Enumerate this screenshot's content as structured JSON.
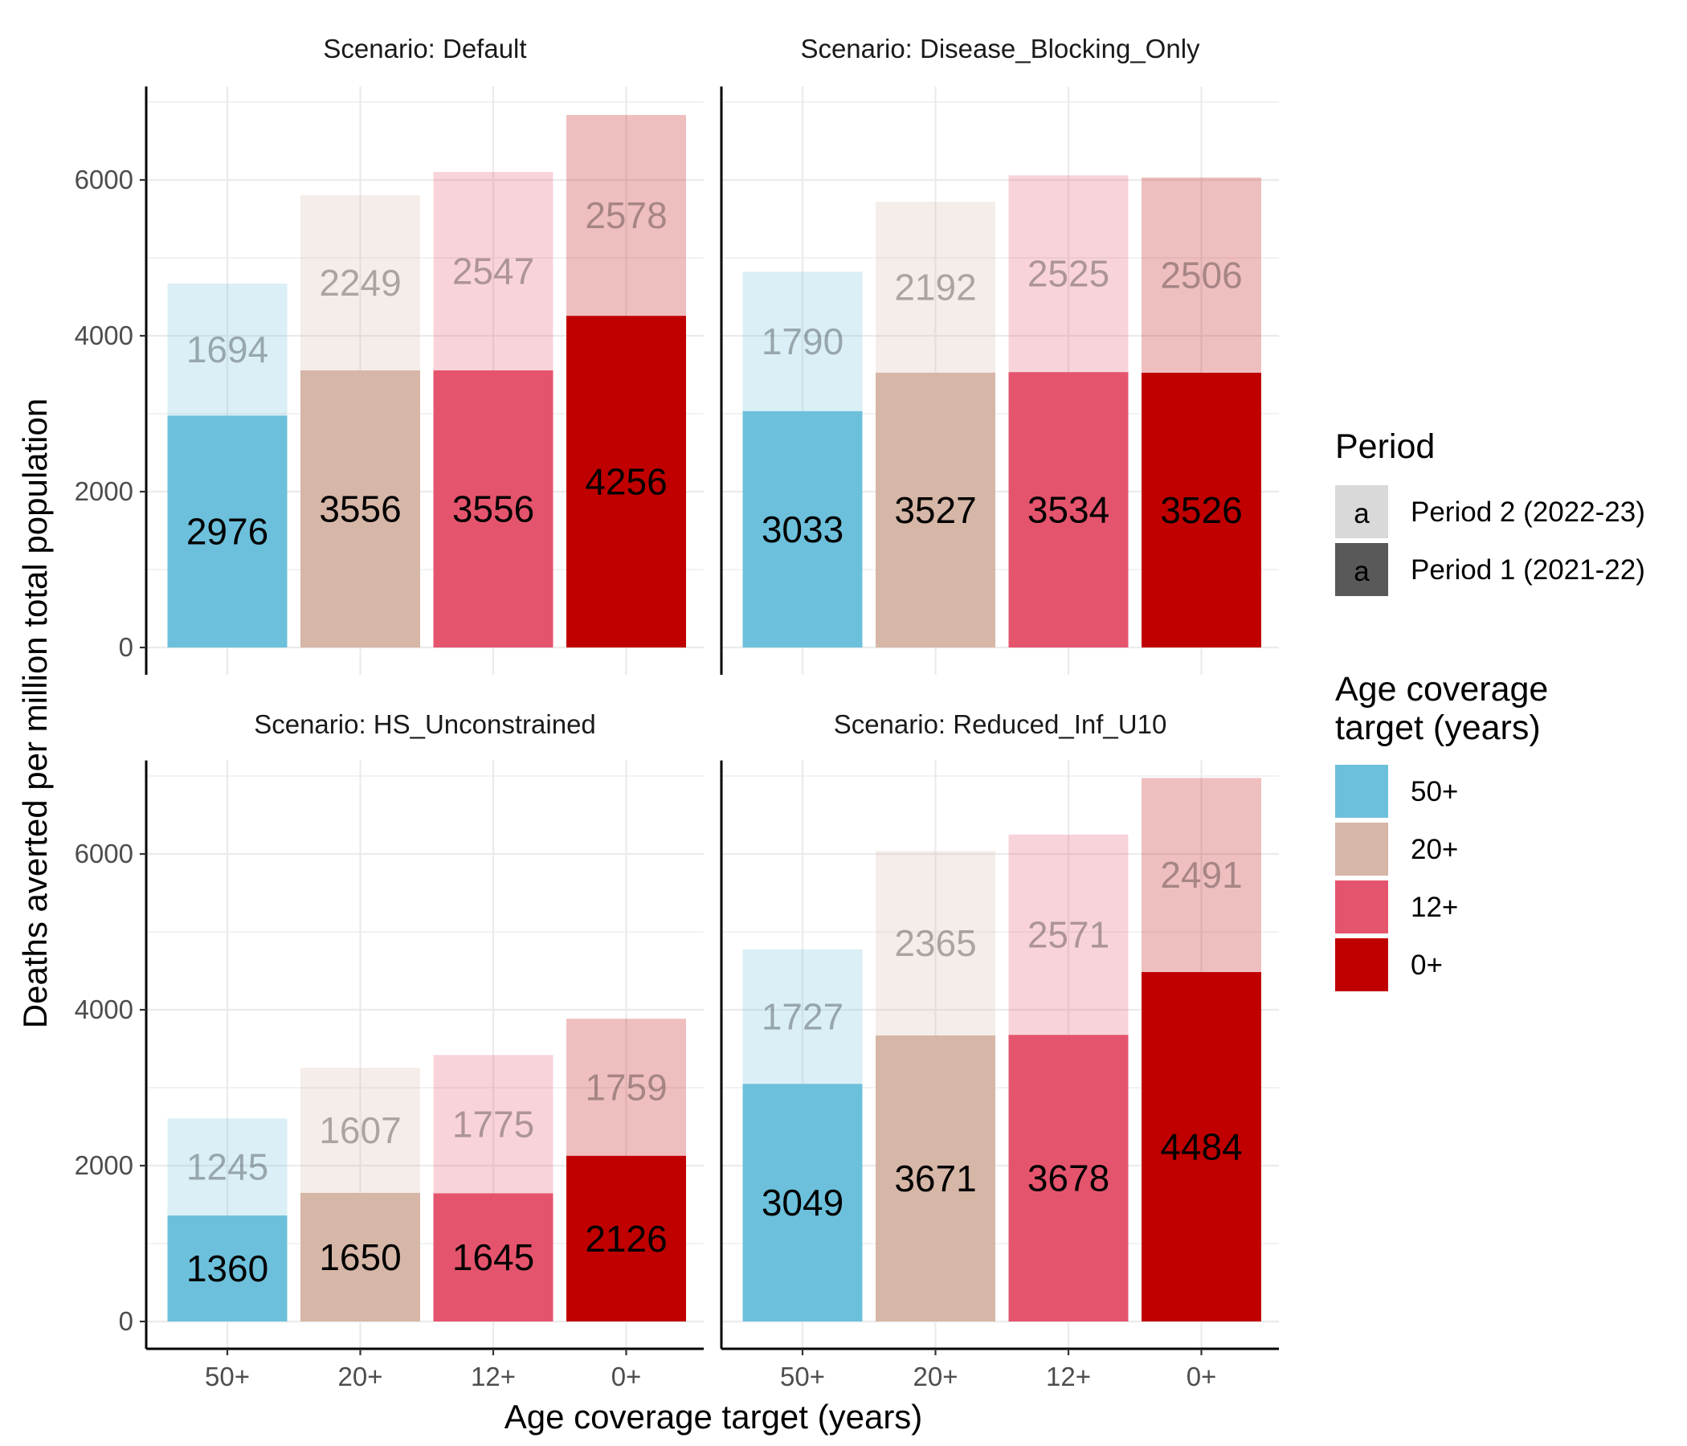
{
  "chart_data": {
    "type": "bar",
    "stacked": true,
    "facet_label_prefix": "Scenario: ",
    "xlabel": "Age coverage target (years)",
    "ylabel": "Deaths averted per million total population",
    "categories": [
      "50+",
      "20+",
      "12+",
      "0+"
    ],
    "yticks": [
      0,
      2000,
      4000,
      6000
    ],
    "ylim": [
      0,
      7200
    ],
    "grid": true,
    "legend_position": "right",
    "colors": {
      "50+": "#6cc0db",
      "20+": "#d6b6a7",
      "12+": "#e5546d",
      "0+": "#c00000"
    },
    "period_legend": {
      "title": "Period",
      "sample_text": "a",
      "items": [
        {
          "key": "period2",
          "label": "Period 2 (2022-23)",
          "style": "light"
        },
        {
          "key": "period1",
          "label": "Period 1 (2021-22)",
          "style": "dark"
        }
      ]
    },
    "age_legend": {
      "title_lines": [
        "Age coverage",
        "target (years)"
      ],
      "items": [
        "50+",
        "20+",
        "12+",
        "0+"
      ]
    },
    "facets": [
      {
        "scenario": "Default",
        "period1": [
          2976,
          3556,
          3556,
          4256
        ],
        "period2": [
          1694,
          2249,
          2547,
          2578
        ]
      },
      {
        "scenario": "Disease_Blocking_Only",
        "period1": [
          3033,
          3527,
          3534,
          3526
        ],
        "period2": [
          1790,
          2192,
          2525,
          2506
        ]
      },
      {
        "scenario": "HS_Unconstrained",
        "period1": [
          1360,
          1650,
          1645,
          2126
        ],
        "period2": [
          1245,
          1607,
          1775,
          1759
        ]
      },
      {
        "scenario": "Reduced_Inf_U10",
        "period1": [
          3049,
          3671,
          3678,
          4484
        ],
        "period2": [
          1727,
          2365,
          2571,
          2491
        ]
      }
    ]
  }
}
